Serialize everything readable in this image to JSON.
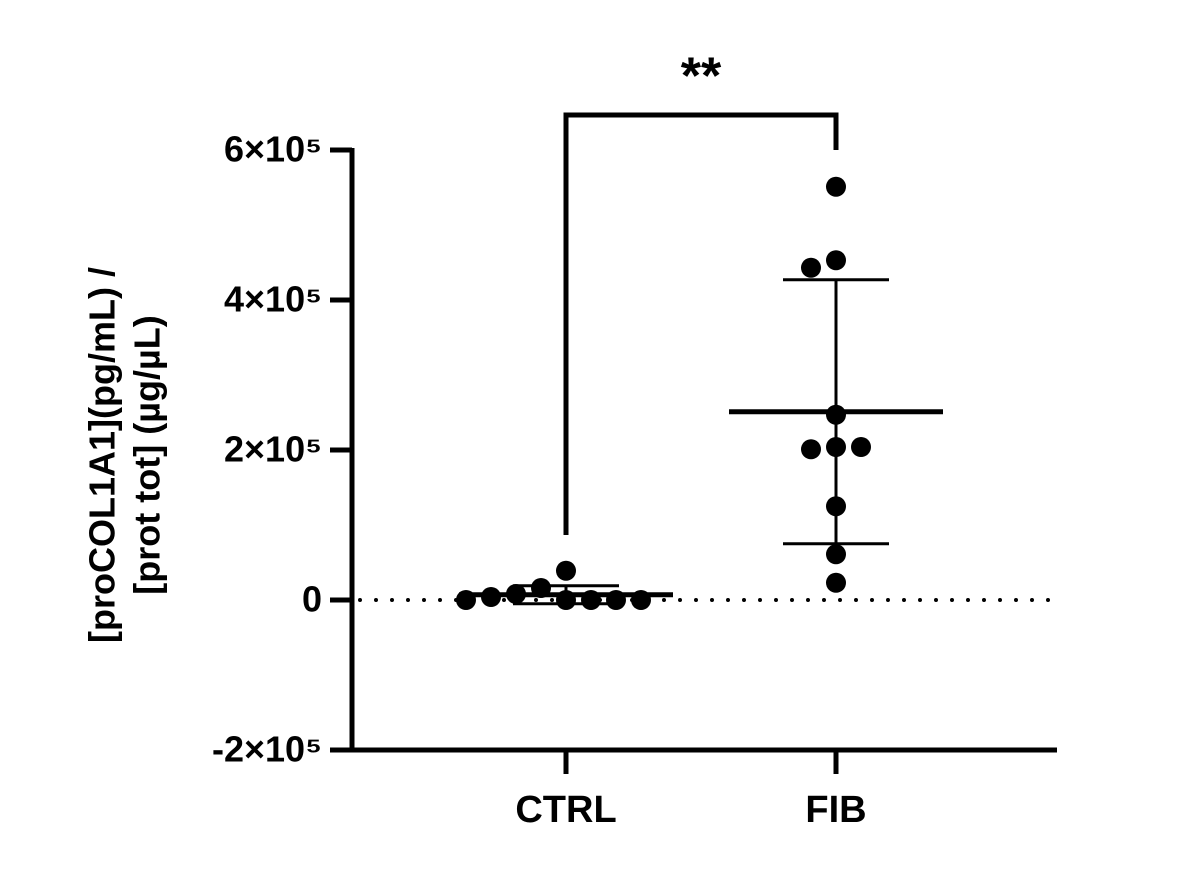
{
  "chart_data": {
    "type": "dotplot",
    "ylabel": [
      "[proCOL1A1](pg/mL) /",
      "[prot tot] (µg/µL)"
    ],
    "categories": [
      "CTRL",
      "FIB"
    ],
    "values": [
      [
        0,
        16000,
        0,
        8000,
        0,
        4000,
        0,
        39000,
        0
      ],
      [
        551000,
        453000,
        443000,
        247000,
        204000,
        201000,
        204000,
        125000,
        61000,
        23000
      ]
    ],
    "mean": [
      7000,
      251000
    ],
    "sd": [
      12000,
      176000
    ],
    "color": "#000000",
    "ylim": [
      -200000,
      600000
    ],
    "yticks": [
      {
        "value": -200000,
        "label": "-2×10⁵"
      },
      0,
      {
        "value": 200000,
        "label": "2×10⁵"
      },
      {
        "value": 400000,
        "label": "4×10⁵"
      },
      {
        "value": 600000,
        "label": "6×10⁵"
      }
    ],
    "hline": 0,
    "annotation": "**"
  }
}
